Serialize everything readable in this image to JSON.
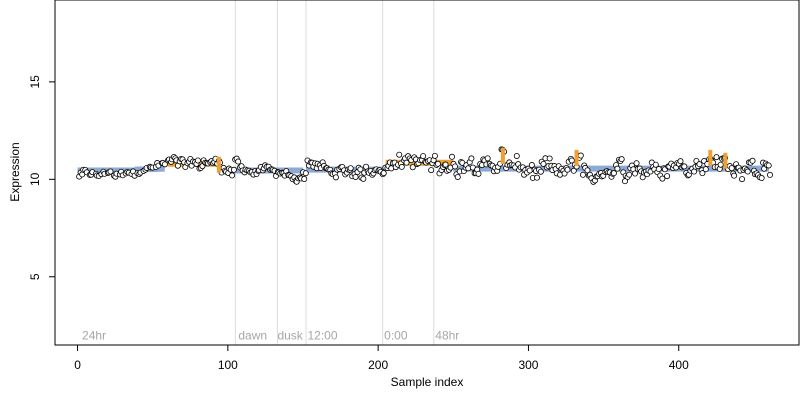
{
  "chart_data": {
    "type": "scatter",
    "title": "",
    "xlabel": "Sample index",
    "ylabel": "Expression",
    "xlim": [
      -15,
      480
    ],
    "ylim": [
      1.5,
      19.2
    ],
    "xticks": [
      0,
      100,
      200,
      300,
      400
    ],
    "yticks": [
      5,
      10,
      15
    ],
    "grid": false,
    "vlines": [
      105,
      133,
      152,
      203,
      237
    ],
    "annotations": [
      {
        "x": 3,
        "text": "24hr"
      },
      {
        "x": 107,
        "text": "dawn"
      },
      {
        "x": 133,
        "text": "dusk"
      },
      {
        "x": 153,
        "text": "12:00"
      },
      {
        "x": 204,
        "text": "0:00"
      },
      {
        "x": 238,
        "text": "48hr"
      }
    ],
    "annotation_y": 2.0,
    "fit_segments": [
      {
        "x": [
          0,
          38
        ],
        "y": [
          10.45,
          10.45
        ],
        "color": "#8da9d6"
      },
      {
        "x": [
          38,
          58
        ],
        "y": [
          10.5,
          10.55
        ],
        "color": "#8da9d6"
      },
      {
        "x": [
          60,
          95
        ],
        "y": [
          10.8,
          10.8
        ],
        "color": "#f0a030"
      },
      {
        "x": [
          96,
          133
        ],
        "y": [
          10.45,
          10.45
        ],
        "color": "#8da9d6"
      },
      {
        "x": [
          133,
          150
        ],
        "y": [
          10.45,
          10.45
        ],
        "color": "#8da9d6"
      },
      {
        "x": [
          152,
          205
        ],
        "y": [
          10.5,
          10.5
        ],
        "color": "#8da9d6"
      },
      {
        "x": [
          205,
          250
        ],
        "y": [
          10.85,
          10.85
        ],
        "color": "#f0a030"
      },
      {
        "x": [
          250,
          460
        ],
        "y": [
          10.55,
          10.55
        ],
        "color": "#8da9d6"
      }
    ],
    "highlights": [
      {
        "x": 94,
        "y": 10.75,
        "color": "#f0a030"
      },
      {
        "x": 283,
        "y": 11.2,
        "color": "#f0a030"
      },
      {
        "x": 332,
        "y": 11.1,
        "color": "#f0a030"
      },
      {
        "x": 421,
        "y": 11.1,
        "color": "#f0a030"
      },
      {
        "x": 431,
        "y": 10.95,
        "color": "#f0a030"
      }
    ],
    "series": [
      {
        "marker": "open-circle",
        "x": [
          2,
          5,
          9,
          13,
          17,
          21,
          25,
          29,
          33,
          37,
          41,
          45,
          49,
          53,
          57,
          61,
          64,
          67,
          70,
          73,
          76,
          79,
          82,
          85,
          88,
          91,
          94,
          97,
          100,
          103,
          106,
          109,
          112,
          115,
          118,
          121,
          124,
          127,
          130,
          133,
          136,
          139,
          142,
          145,
          148,
          151,
          154,
          157,
          160,
          163,
          166,
          169,
          172,
          175,
          178,
          181,
          184,
          187,
          190,
          193,
          196,
          199,
          202,
          205,
          208,
          211,
          214,
          217,
          220,
          223,
          226,
          229,
          232,
          235,
          238,
          241,
          244,
          247,
          250,
          253,
          256,
          259,
          262,
          265,
          268,
          271,
          274,
          277,
          280,
          283,
          286,
          289,
          292,
          295,
          298,
          301,
          304,
          307,
          310,
          313,
          316,
          319,
          322,
          325,
          328,
          331,
          334,
          337,
          340,
          343,
          346,
          349,
          352,
          355,
          358,
          361,
          364,
          367,
          370,
          373,
          376,
          379,
          382,
          385,
          388,
          391,
          394,
          397,
          400,
          403,
          406,
          409,
          412,
          415,
          418,
          421,
          424,
          427,
          430,
          433,
          436,
          439,
          442,
          445,
          448,
          451,
          454,
          457,
          460
        ],
        "y": [
          10.2,
          10.4,
          10.3,
          10.2,
          10.3,
          10.4,
          10.2,
          10.3,
          10.4,
          10.3,
          10.4,
          10.5,
          10.6,
          10.7,
          10.8,
          10.9,
          11.0,
          10.8,
          10.9,
          10.7,
          10.9,
          10.8,
          10.7,
          10.9,
          10.8,
          10.9,
          11.0,
          10.5,
          10.4,
          10.3,
          10.9,
          10.6,
          10.5,
          10.4,
          10.3,
          10.5,
          10.6,
          10.5,
          10.4,
          10.3,
          10.2,
          10.3,
          10.1,
          10.0,
          10.1,
          10.2,
          10.9,
          10.8,
          10.6,
          10.7,
          10.5,
          10.4,
          10.3,
          10.5,
          10.4,
          10.5,
          10.3,
          10.4,
          10.2,
          10.5,
          10.4,
          10.6,
          10.3,
          10.5,
          10.7,
          10.9,
          11.0,
          10.8,
          11.1,
          10.9,
          10.8,
          11.0,
          10.9,
          10.7,
          11.0,
          10.6,
          10.8,
          10.5,
          10.9,
          10.4,
          10.7,
          10.8,
          10.9,
          10.6,
          10.5,
          10.8,
          10.9,
          10.7,
          10.6,
          11.3,
          10.8,
          10.5,
          10.9,
          10.7,
          10.4,
          10.6,
          10.3,
          10.2,
          10.8,
          10.9,
          10.6,
          10.4,
          10.3,
          10.5,
          10.8,
          10.7,
          11.2,
          10.5,
          10.3,
          10.1,
          10.0,
          10.4,
          10.5,
          10.3,
          10.6,
          10.8,
          10.2,
          10.4,
          10.5,
          10.7,
          10.3,
          10.4,
          10.6,
          10.5,
          10.3,
          10.4,
          10.6,
          10.8,
          10.7,
          10.9,
          10.5,
          10.4,
          10.8,
          10.6,
          10.7,
          11.1,
          10.9,
          10.6,
          11.0,
          10.8,
          10.4,
          10.5,
          10.3,
          10.6,
          10.7,
          10.5,
          10.2,
          10.8,
          10.5
        ],
        "spread": [
          0.15,
          0.12,
          0.12,
          0.12,
          0.12,
          0.12,
          0.12,
          0.12,
          0.12,
          0.12,
          0.12,
          0.12,
          0.12,
          0.15,
          0.15,
          0.2,
          0.2,
          0.2,
          0.2,
          0.2,
          0.2,
          0.2,
          0.2,
          0.2,
          0.2,
          0.2,
          0.2,
          0.2,
          0.2,
          0.2,
          0.25,
          0.2,
          0.15,
          0.15,
          0.15,
          0.15,
          0.15,
          0.15,
          0.15,
          0.15,
          0.15,
          0.15,
          0.15,
          0.15,
          0.15,
          0.2,
          0.25,
          0.2,
          0.2,
          0.2,
          0.2,
          0.2,
          0.2,
          0.2,
          0.2,
          0.2,
          0.2,
          0.2,
          0.2,
          0.2,
          0.2,
          0.2,
          0.2,
          0.25,
          0.3,
          0.3,
          0.3,
          0.3,
          0.3,
          0.3,
          0.3,
          0.3,
          0.3,
          0.3,
          0.3,
          0.3,
          0.3,
          0.3,
          0.3,
          0.3,
          0.3,
          0.3,
          0.3,
          0.3,
          0.3,
          0.3,
          0.3,
          0.3,
          0.3,
          0.35,
          0.3,
          0.3,
          0.3,
          0.3,
          0.3,
          0.3,
          0.3,
          0.3,
          0.3,
          0.3,
          0.3,
          0.3,
          0.3,
          0.3,
          0.3,
          0.3,
          0.35,
          0.3,
          0.3,
          0.3,
          0.3,
          0.3,
          0.3,
          0.3,
          0.3,
          0.3,
          0.3,
          0.3,
          0.3,
          0.3,
          0.3,
          0.3,
          0.3,
          0.3,
          0.3,
          0.3,
          0.3,
          0.3,
          0.3,
          0.3,
          0.3,
          0.3,
          0.3,
          0.3,
          0.3,
          0.35,
          0.3,
          0.3,
          0.3,
          0.3,
          0.3,
          0.3,
          0.3,
          0.3,
          0.3,
          0.3,
          0.3,
          0.3,
          0.3
        ]
      }
    ]
  }
}
